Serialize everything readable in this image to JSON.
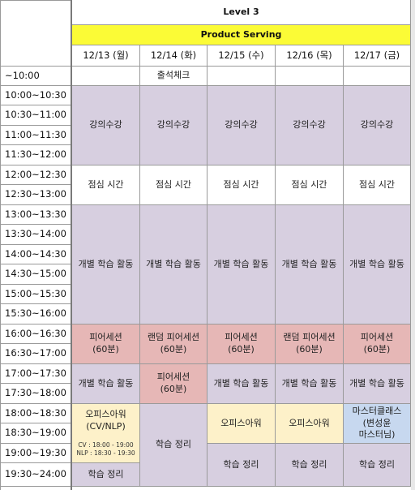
{
  "level": "Level 3",
  "track": "Product Serving",
  "days": [
    "12/13 (월)",
    "12/14 (화)",
    "12/15 (수)",
    "12/16 (목)",
    "12/17 (금)"
  ],
  "times": [
    "~10:00",
    "10:00~10:30",
    "10:30~11:00",
    "11:00~11:30",
    "11:30~12:00",
    "12:00~12:30",
    "12:30~13:00",
    "13:00~13:30",
    "13:30~14:00",
    "14:00~14:30",
    "14:30~15:00",
    "15:00~15:30",
    "15:30~16:00",
    "16:00~16:30",
    "16:30~17:00",
    "17:00~17:30",
    "17:30~18:00",
    "18:00~18:30",
    "18:30~19:00",
    "19:00~19:30",
    "19:30~24:00"
  ],
  "attendance": "출석체크",
  "lecture": "강의수강",
  "lunch": "점심 시간",
  "self_study": "개별 학습 활동",
  "peer_session": [
    "피어세션",
    "(60분)"
  ],
  "random_peer_session": [
    "랜덤 피어세션",
    "(60분)"
  ],
  "office_hour": "오피스아워",
  "office_hour_mon": [
    "오피스아워",
    "(CV/NLP)"
  ],
  "office_hour_note": [
    "CV : 18:00 - 19:00",
    "NLP : 18:30 - 19:30"
  ],
  "review": "학습 정리",
  "master_class": [
    "마스터클래스",
    "(변성윤",
    "마스터님)"
  ],
  "colors": {
    "lecture": "#d7cfe0",
    "peer": "#e6b7b6",
    "office": "#fdf1c9",
    "master": "#c7d8ef",
    "track_bar": "#fbfb36"
  }
}
